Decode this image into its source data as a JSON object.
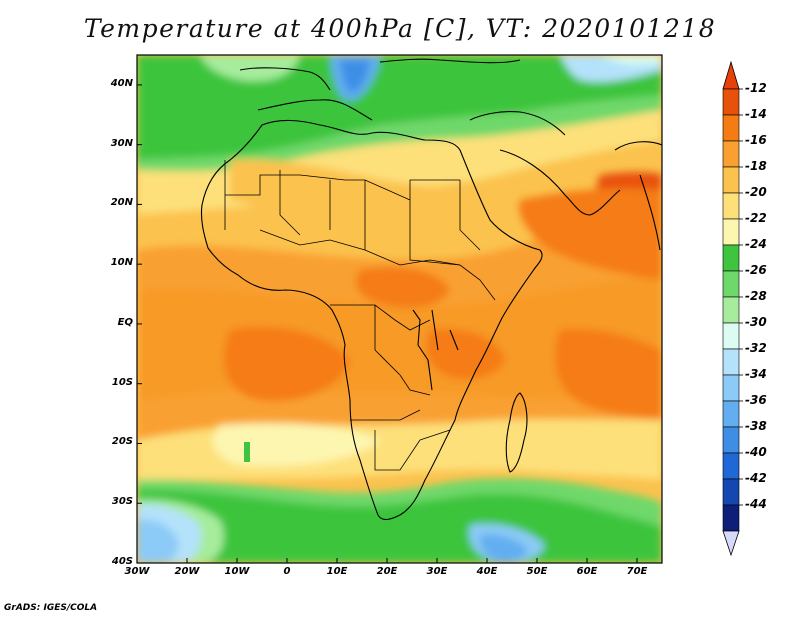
{
  "title": "Temperature at 400hPa [C], VT: 2020101218",
  "footer": "GrADS: IGES/COLA",
  "map": {
    "lon_range": [
      -30,
      75
    ],
    "lat_range": [
      -40,
      45
    ],
    "lon_ticks": [
      {
        "value": -30,
        "label": "30W"
      },
      {
        "value": -20,
        "label": "20W"
      },
      {
        "value": -10,
        "label": "10W"
      },
      {
        "value": 0,
        "label": "0"
      },
      {
        "value": 10,
        "label": "10E"
      },
      {
        "value": 20,
        "label": "20E"
      },
      {
        "value": 30,
        "label": "30E"
      },
      {
        "value": 40,
        "label": "40E"
      },
      {
        "value": 50,
        "label": "50E"
      },
      {
        "value": 60,
        "label": "60E"
      },
      {
        "value": 70,
        "label": "70E"
      }
    ],
    "lat_ticks": [
      {
        "value": 40,
        "label": "40N"
      },
      {
        "value": 30,
        "label": "30N"
      },
      {
        "value": 20,
        "label": "20N"
      },
      {
        "value": 10,
        "label": "10N"
      },
      {
        "value": 0,
        "label": "EQ"
      },
      {
        "value": -10,
        "label": "10S"
      },
      {
        "value": -20,
        "label": "20S"
      },
      {
        "value": -30,
        "label": "30S"
      },
      {
        "value": -40,
        "label": "40S"
      }
    ]
  },
  "colorbar": {
    "levels": [
      {
        "label": "-12",
        "color": "#e8510a"
      },
      {
        "label": "-14",
        "color": "#f57c12"
      },
      {
        "label": "-16",
        "color": "#f9a030"
      },
      {
        "label": "-18",
        "color": "#fbc24e"
      },
      {
        "label": "-20",
        "color": "#fde07a"
      },
      {
        "label": "-22",
        "color": "#fdf6b0"
      },
      {
        "label": "-24",
        "color": "#3ec43e"
      },
      {
        "label": "-26",
        "color": "#6fd86a"
      },
      {
        "label": "-28",
        "color": "#a6ec9c"
      },
      {
        "label": "-30",
        "color": "#dcfbf2"
      },
      {
        "label": "-32",
        "color": "#b4e2fb"
      },
      {
        "label": "-34",
        "color": "#8ccaf7"
      },
      {
        "label": "-36",
        "color": "#62aef0"
      },
      {
        "label": "-38",
        "color": "#3e8ee6"
      },
      {
        "label": "-40",
        "color": "#2068d6"
      },
      {
        "label": "-42",
        "color": "#1448b0"
      },
      {
        "label": "-44",
        "color": "#0d1f78"
      }
    ],
    "top_arrow_color": "#e8400a",
    "bottom_arrow_color": "#d8d8fa"
  }
}
